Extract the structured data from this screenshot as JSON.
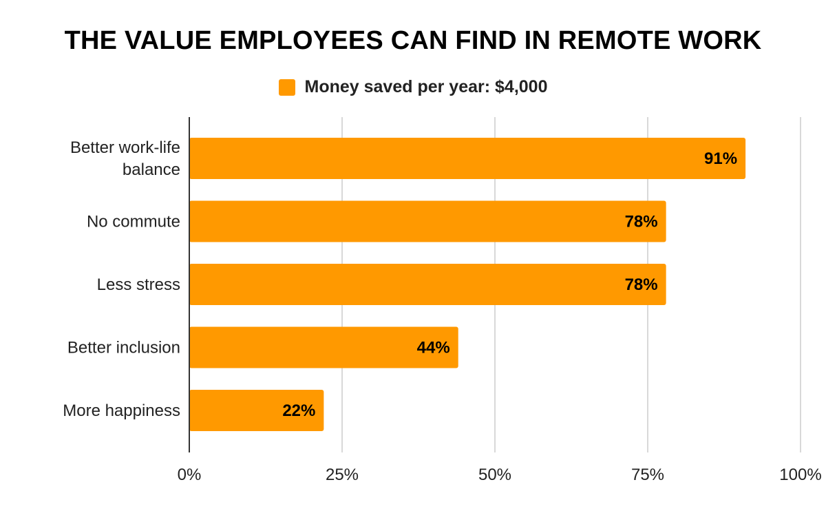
{
  "chart_data": {
    "type": "bar",
    "orientation": "horizontal",
    "title": "THE VALUE EMPLOYEES CAN FIND IN REMOTE WORK",
    "legend": {
      "position": "top-center",
      "entries": [
        "Money saved per year: $4,000"
      ]
    },
    "categories": [
      [
        "Better work-life",
        "balance"
      ],
      [
        "No commute"
      ],
      [
        "Less stress"
      ],
      [
        "Better inclusion"
      ],
      [
        "More happiness"
      ]
    ],
    "series": [
      {
        "name": "Money saved per year: $4,000",
        "values": [
          91,
          78,
          78,
          44,
          22
        ],
        "data_labels": [
          "91%",
          "78%",
          "78%",
          "44%",
          "22%"
        ],
        "color": "#ff9900"
      }
    ],
    "xlim": [
      0,
      100
    ],
    "x_ticks": [
      0,
      25,
      50,
      75,
      100
    ],
    "x_tick_labels": [
      "0%",
      "25%",
      "50%",
      "75%",
      "100%"
    ],
    "xlabel": "",
    "ylabel": "",
    "grid": "vertical"
  },
  "colors": {
    "bar": "#ff9900",
    "grid": "#cccccc",
    "axis": "#333333",
    "text": "#222222"
  }
}
